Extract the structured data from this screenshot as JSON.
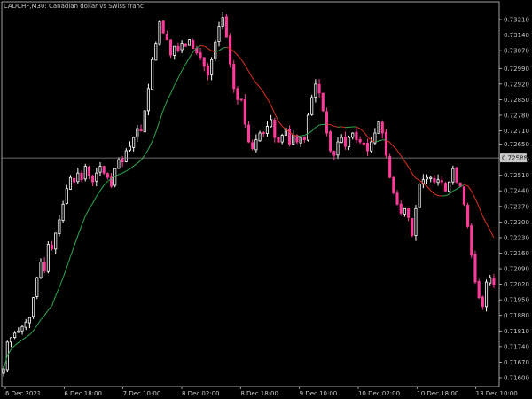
{
  "window": {
    "title": "CADCHF,M30:  Canadian dollar vs Swiss franc"
  },
  "colors": {
    "background": "#000000",
    "axis": "#c8c8c8",
    "candle_bull": "#ffffff",
    "candle_bear": "#ff3b9a",
    "ma_up": "#2fa84f",
    "ma_down": "#e0321e",
    "current_price_line": "#8c8c8c",
    "price_tag_bg": "#c8c8c8"
  },
  "chart_data": {
    "type": "candlestick",
    "symbol": "CADCHF",
    "timeframe": "M30",
    "title": "CADCHF,M30:  Canadian dollar vs Swiss franc",
    "ylim": [
      0.7156,
      0.7329
    ],
    "y_ticks": [
      "0.73210",
      "0.73140",
      "0.73070",
      "0.72990",
      "0.72920",
      "0.72850",
      "0.72780",
      "0.72710",
      "0.72650",
      "0.72580",
      "0.72510",
      "0.72440",
      "0.72370",
      "0.72300",
      "0.72230",
      "0.72160",
      "0.72090",
      "0.72020",
      "0.71950",
      "0.71880",
      "0.71810",
      "0.71740",
      "0.71670",
      "0.71600"
    ],
    "x_labels": [
      "6 Dec 2021",
      "6 Dec 18:00",
      "7 Dec 10:00",
      "8 Dec 02:00",
      "8 Dec 18:00",
      "9 Dec 10:00",
      "10 Dec 02:00",
      "10 Dec 18:00",
      "13 Dec 10:00"
    ],
    "current_price": 0.72588,
    "current_price_label": "0.72588",
    "closes": [
      0.7164,
      0.7176,
      0.7178,
      0.718,
      0.7181,
      0.7183,
      0.7185,
      0.7187,
      0.7196,
      0.7205,
      0.7212,
      0.7208,
      0.722,
      0.7218,
      0.7225,
      0.7231,
      0.7238,
      0.7245,
      0.725,
      0.7248,
      0.7252,
      0.7249,
      0.7255,
      0.7251,
      0.7248,
      0.7252,
      0.7255,
      0.7252,
      0.725,
      0.7246,
      0.7254,
      0.7258,
      0.7257,
      0.7262,
      0.7264,
      0.7268,
      0.7272,
      0.7271,
      0.728,
      0.729,
      0.7303,
      0.731,
      0.732,
      0.7315,
      0.7312,
      0.7305,
      0.7309,
      0.7307,
      0.731,
      0.7309,
      0.7312,
      0.7308,
      0.7306,
      0.7304,
      0.73,
      0.7296,
      0.7303,
      0.7311,
      0.7318,
      0.7322,
      0.7313,
      0.7301,
      0.729,
      0.7285,
      0.7285,
      0.7274,
      0.7266,
      0.7263,
      0.7267,
      0.727,
      0.727,
      0.7273,
      0.7276,
      0.7268,
      0.7266,
      0.7269,
      0.7272,
      0.7265,
      0.7269,
      0.7266,
      0.7268,
      0.7267,
      0.7278,
      0.7286,
      0.7292,
      0.7288,
      0.728,
      0.727,
      0.7262,
      0.726,
      0.7266,
      0.7268,
      0.7264,
      0.7268,
      0.727,
      0.7267,
      0.7266,
      0.7265,
      0.7262,
      0.7266,
      0.727,
      0.7275,
      0.727,
      0.726,
      0.725,
      0.7243,
      0.7238,
      0.7234,
      0.7236,
      0.7232,
      0.7224,
      0.7236,
      0.7247,
      0.7249,
      0.725,
      0.725,
      0.7248,
      0.7249,
      0.7248,
      0.7244,
      0.7248,
      0.7254,
      0.7248,
      0.7246,
      0.7238,
      0.7228,
      0.7215,
      0.7203,
      0.7196,
      0.7192,
      0.7203,
      0.7205,
      0.7202
    ],
    "volatility": 0.00018,
    "ma_period": 14
  },
  "axis": {
    "font_size": 7
  }
}
